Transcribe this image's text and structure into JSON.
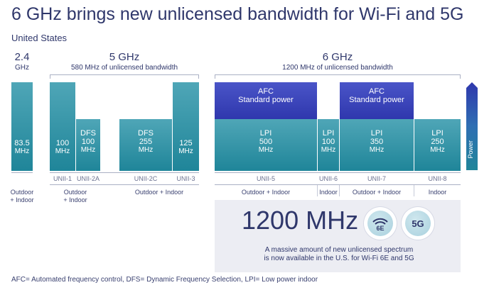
{
  "title": "6 GHz brings new unlicensed bandwidth for Wi-Fi and 5G",
  "region": "United States",
  "bands": {
    "b24": {
      "name": "2.4",
      "sub": "GHz"
    },
    "b5": {
      "name": "5 GHz",
      "sub": "580 MHz of unlicensed bandwidth"
    },
    "b6": {
      "name": "6 GHz",
      "sub": "1200 MHz of unlicensed bandwidth"
    }
  },
  "blocks": {
    "b24": {
      "line1": "83.5",
      "line2": "MHz"
    },
    "unii1": {
      "line1": "100",
      "line2": "MHz"
    },
    "unii2a": {
      "line1": "DFS",
      "line2": "100",
      "line3": "MHz"
    },
    "unii2c": {
      "line1": "DFS",
      "line2": "255",
      "line3": "MHz"
    },
    "unii3": {
      "line1": "125",
      "line2": "MHz"
    },
    "unii5": {
      "afc1": "AFC",
      "afc2": "Standard power",
      "line1": "LPI",
      "line2": "500",
      "line3": "MHz"
    },
    "unii6": {
      "line1": "LPI",
      "line2": "100",
      "line3": "MHz"
    },
    "unii7": {
      "afc1": "AFC",
      "afc2": "Standard power",
      "line1": "LPI",
      "line2": "350",
      "line3": "MHz"
    },
    "unii8": {
      "line1": "LPI",
      "line2": "250",
      "line3": "MHz"
    }
  },
  "sub_labels": {
    "unii1": "UNII-1",
    "unii2a": "UNII-2A",
    "unii2c": "UNII-2C",
    "unii3": "UNII-3",
    "unii5": "UNII-5",
    "unii6": "UNII-6",
    "unii7": "UNII-7",
    "unii8": "UNII-8"
  },
  "use_labels": {
    "b24": {
      "line1": "Outdoor",
      "line2": "+ Indoor"
    },
    "b5a": {
      "line1": "Outdoor",
      "line2": "+ Indoor"
    },
    "b5b": "Outdoor + Indoor",
    "u5": "Outdoor + Indoor",
    "u6": "Indoor",
    "u7": "Outdoor + Indoor",
    "u8": "Indoor"
  },
  "power_label": "Power",
  "panel": {
    "big_value": "1200 MHz",
    "badge1": "6E",
    "badge2": "5G",
    "text1": "A massive amount of new unlicensed spectrum",
    "text2": "is now available in the U.S. for Wi-Fi 6E and 5G"
  },
  "footnote": "AFC= Automated frequency control, DFS= Dynamic Frequency Selection, LPI= Low power indoor",
  "colors": {
    "teal": "#1f8599",
    "blue": "#2f37ad",
    "navy": "#2f376b",
    "panel": "#ecedf3"
  }
}
